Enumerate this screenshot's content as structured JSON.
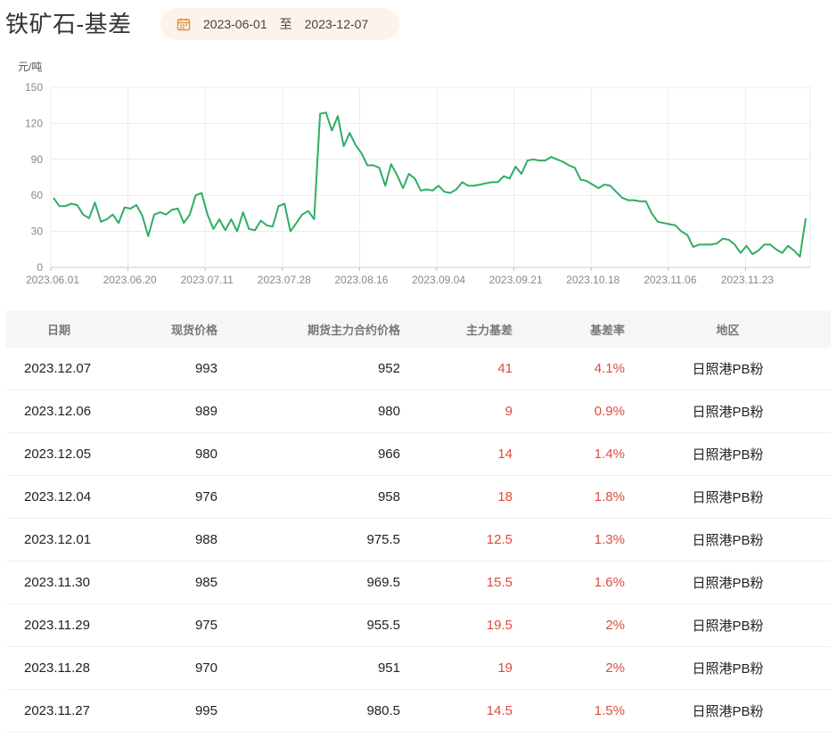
{
  "title": "铁矿石-基差",
  "date_range": {
    "start": "2023-06-01",
    "separator": "至",
    "end": "2023-12-07"
  },
  "colors": {
    "line": "#2eae63",
    "negative_text": "#e04a3f",
    "header_bg": "#f5f6f8",
    "range_bg": "#fdf3ea",
    "icon": "#e08a3a"
  },
  "chart_data": {
    "type": "line",
    "unit_label": "元/吨",
    "ylim": [
      0,
      150
    ],
    "yticks": [
      0,
      30,
      60,
      90,
      120,
      150
    ],
    "xtick_labels": [
      "2023.06.01",
      "2023.06.20",
      "2023.07.11",
      "2023.07.28",
      "2023.08.16",
      "2023.09.04",
      "2023.09.21",
      "2023.10.18",
      "2023.11.06",
      "2023.11.23"
    ],
    "grid": true,
    "series": [
      {
        "values": [
          58,
          51,
          51,
          53,
          52,
          44,
          41,
          54,
          38,
          40,
          44,
          37,
          50,
          49,
          52,
          43,
          26,
          44,
          46,
          44,
          48,
          49,
          37,
          44,
          60,
          62,
          44,
          32,
          40,
          31,
          40,
          30,
          46,
          32,
          31,
          39,
          35,
          34,
          51,
          53,
          30,
          37,
          44,
          47,
          40,
          128,
          129,
          114,
          126,
          101,
          112,
          102,
          95,
          85,
          85,
          83,
          68,
          86,
          77,
          66,
          78,
          74,
          64,
          65,
          64,
          68,
          63,
          62,
          65,
          71,
          68,
          68,
          69,
          70,
          71,
          71,
          76,
          74,
          84,
          78,
          89,
          90,
          89,
          89,
          92,
          90,
          88,
          85,
          83,
          73,
          72,
          69,
          66,
          69,
          68,
          63,
          58,
          56,
          56,
          55,
          55,
          45,
          38,
          37,
          36,
          35,
          30,
          27,
          17,
          19,
          19,
          19,
          20,
          24,
          23,
          19,
          12,
          18,
          11,
          14,
          19,
          19,
          15,
          12,
          18,
          14,
          9,
          41
        ]
      }
    ]
  },
  "table": {
    "headers": [
      "日期",
      "现货价格",
      "期货主力合约价格",
      "主力基差",
      "基差率",
      "地区"
    ],
    "rows": [
      [
        "2023.12.07",
        "993",
        "952",
        "41",
        "4.1%",
        "日照港PB粉"
      ],
      [
        "2023.12.06",
        "989",
        "980",
        "9",
        "0.9%",
        "日照港PB粉"
      ],
      [
        "2023.12.05",
        "980",
        "966",
        "14",
        "1.4%",
        "日照港PB粉"
      ],
      [
        "2023.12.04",
        "976",
        "958",
        "18",
        "1.8%",
        "日照港PB粉"
      ],
      [
        "2023.12.01",
        "988",
        "975.5",
        "12.5",
        "1.3%",
        "日照港PB粉"
      ],
      [
        "2023.11.30",
        "985",
        "969.5",
        "15.5",
        "1.6%",
        "日照港PB粉"
      ],
      [
        "2023.11.29",
        "975",
        "955.5",
        "19.5",
        "2%",
        "日照港PB粉"
      ],
      [
        "2023.11.28",
        "970",
        "951",
        "19",
        "2%",
        "日照港PB粉"
      ],
      [
        "2023.11.27",
        "995",
        "980.5",
        "14.5",
        "1.5%",
        "日照港PB粉"
      ]
    ]
  }
}
